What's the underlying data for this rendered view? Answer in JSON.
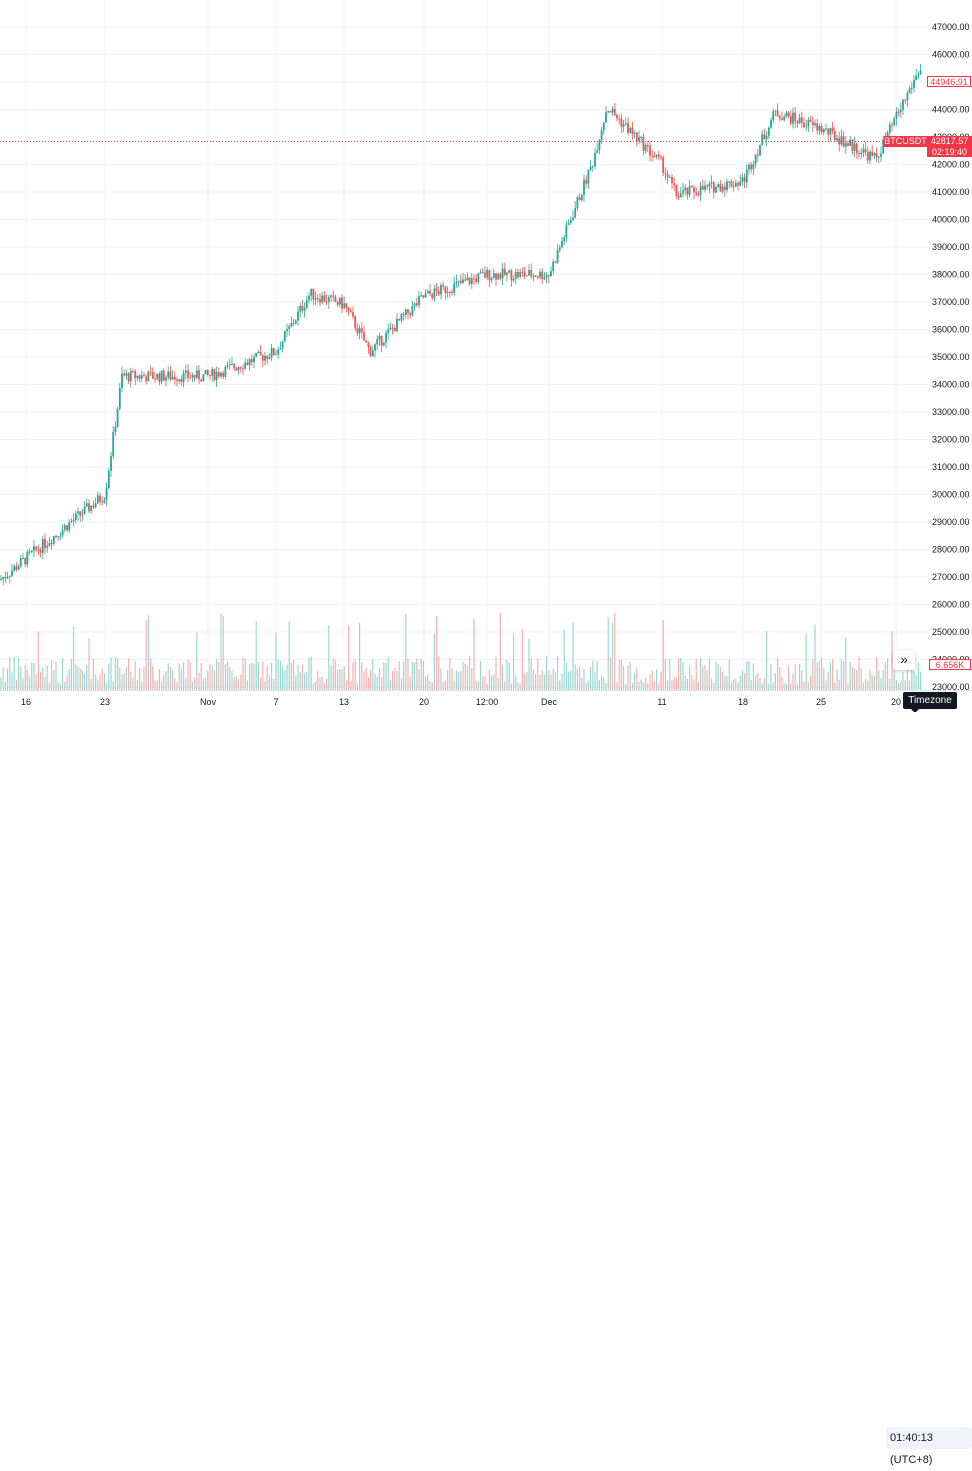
{
  "symbol": "BTCUSDT",
  "last_price_label": "44946.91",
  "current_price": "42817.57",
  "countdown": "02:19:40",
  "volume_label": "6.656K",
  "tooltip": "Timezone",
  "clock": "01:40:13 (UTC+8)",
  "scroll_button": "»",
  "colors": {
    "up": "#26a69a",
    "down": "#ef5350",
    "accent": "#f23645",
    "grid": "#f0f3fa"
  },
  "price_axis": [
    "47000.00",
    "46000.00",
    "45000.00",
    "44000.00",
    "43000.00",
    "42000.00",
    "41000.00",
    "40000.00",
    "39000.00",
    "38000.00",
    "37000.00",
    "36000.00",
    "35000.00",
    "34000.00",
    "33000.00",
    "32000.00",
    "31000.00",
    "30000.00",
    "29000.00",
    "28000.00",
    "27000.00",
    "26000.00",
    "25000.00",
    "24000.00",
    "23000.00"
  ],
  "time_axis": [
    "16",
    "23",
    "Nov",
    "7",
    "13",
    "20",
    "12:00",
    "Dec",
    "11",
    "18",
    "25",
    "20"
  ],
  "chart_data": {
    "type": "candlestick",
    "symbol": "BTCUSDT",
    "ylim": [
      22900,
      47400
    ],
    "key_closes": [
      {
        "x": "16",
        "y": 26900
      },
      {
        "x": "23",
        "y": 30000
      },
      {
        "x": "24",
        "y": 34300
      },
      {
        "x": "Nov",
        "y": 34300
      },
      {
        "x": "7",
        "y": 35200
      },
      {
        "x": "9",
        "y": 37300
      },
      {
        "x": "13",
        "y": 36900
      },
      {
        "x": "14",
        "y": 35200
      },
      {
        "x": "20",
        "y": 37200
      },
      {
        "x": "12:00",
        "y": 38000
      },
      {
        "x": "Dec",
        "y": 38000
      },
      {
        "x": "5",
        "y": 42000
      },
      {
        "x": "6",
        "y": 44100
      },
      {
        "x": "11",
        "y": 42000
      },
      {
        "x": "12",
        "y": 40900
      },
      {
        "x": "18",
        "y": 41400
      },
      {
        "x": "20",
        "y": 43900
      },
      {
        "x": "25",
        "y": 43300
      },
      {
        "x": "30",
        "y": 42200
      },
      {
        "x": "2024",
        "y": 45500
      }
    ],
    "last_price": 44946.91,
    "current_price": 42817.57
  }
}
